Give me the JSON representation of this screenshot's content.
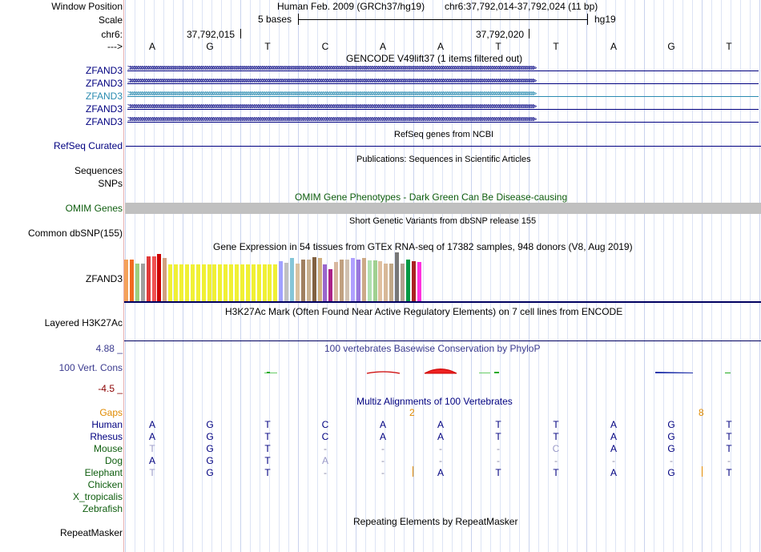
{
  "header": {
    "window_position_label": "Window Position",
    "scale_label": "Scale",
    "chrom_label": "chr6:",
    "strand_label": "--->",
    "assembly": "Human Feb. 2009 (GRCh37/hg19)",
    "position": "chr6:37,792,014-37,792,024 (11 bp)",
    "scale_text": "5 bases",
    "scale_db": "hg19",
    "coord_1": "37,792,015",
    "coord_2": "37,792,020"
  },
  "sequence": [
    "A",
    "G",
    "T",
    "C",
    "A",
    "A",
    "T",
    "T",
    "A",
    "G",
    "T"
  ],
  "gencode": {
    "title": "GENCODE V49lift37 (1 items filtered out)",
    "genes": [
      "ZFAND3",
      "ZFAND3",
      "ZFAND3",
      "ZFAND3",
      "ZFAND3"
    ]
  },
  "refseq": {
    "title": "RefSeq genes from NCBI",
    "label": "RefSeq Curated"
  },
  "publications": {
    "title": "Publications: Sequences in Scientific Articles",
    "label_1": "Sequences",
    "label_2": "SNPs"
  },
  "omim": {
    "title": "OMIM Gene Phenotypes - Dark Green Can Be Disease-causing",
    "label": "OMIM Genes"
  },
  "dbsnp": {
    "title": "Short Genetic Variants from dbSNP release 155",
    "label": "Common dbSNP(155)"
  },
  "gtex": {
    "title": "Gene Expression in 54 tissues from GTEx RNA-seq of 17382 samples, 948 donors (V8, Aug 2019)",
    "label": "ZFAND3"
  },
  "h3k27ac": {
    "title": "H3K27Ac Mark (Often Found Near Active Regulatory Elements) on 7 cell lines from ENCODE",
    "label": "Layered H3K27Ac"
  },
  "conservation": {
    "title": "100 vertebrates Basewise Conservation by PhyloP",
    "label": "100 Vert. Cons",
    "max": "4.88 _",
    "min": "-4.5 _"
  },
  "multiz": {
    "title": "Multiz Alignments of 100 Vertebrates",
    "gaps_label": "Gaps",
    "gap_1": "2",
    "gap_2": "8",
    "species": [
      {
        "name": "Human",
        "bases": [
          "A",
          "G",
          "T",
          "C",
          "A",
          "A",
          "T",
          "T",
          "A",
          "G",
          "T"
        ]
      },
      {
        "name": "Rhesus",
        "bases": [
          "A",
          "G",
          "T",
          "C",
          "A",
          "A",
          "T",
          "T",
          "A",
          "G",
          "T"
        ]
      },
      {
        "name": "Mouse",
        "bases": [
          "T",
          "G",
          "T",
          "-",
          "-",
          "-",
          "-",
          "C",
          "A",
          "G",
          "T"
        ]
      },
      {
        "name": "Dog",
        "bases": [
          "A",
          "G",
          "T",
          "A",
          "-",
          "-",
          "-",
          "-",
          "-",
          "-",
          "-"
        ]
      },
      {
        "name": "Elephant",
        "bases": [
          "T",
          "G",
          "T",
          "-",
          "-",
          "A",
          "T",
          "T",
          "A",
          "G",
          "T"
        ]
      },
      {
        "name": "Chicken",
        "bases": []
      },
      {
        "name": "X_tropicalis",
        "bases": []
      },
      {
        "name": "Zebrafish",
        "bases": []
      }
    ]
  },
  "repeatmasker": {
    "title": "Repeating Elements by RepeatMasker",
    "label": "RepeatMasker"
  },
  "colors": {
    "navy": "#000080",
    "teal": "#2a8bb0",
    "omim_green": "#0e5d0e",
    "gaps_orange": "#e08a00",
    "cons_blue": "#3b3b8f",
    "cons_red": "#8b0000",
    "gtex": [
      "#f4a15a",
      "#f26a21",
      "#9dcf7e",
      "#a0a0a0",
      "#e03a3a",
      "#f05050",
      "#cc0000",
      "#d1a080",
      "#f0f035",
      "#f0f035",
      "#f0f035",
      "#f0f035",
      "#f0f035",
      "#f0f035",
      "#f0f035",
      "#f0f035",
      "#f0f035",
      "#f0f035",
      "#f0f035",
      "#f0f035",
      "#f0f035",
      "#f0f035",
      "#f0f035",
      "#f0f035",
      "#f0f035",
      "#f0f035",
      "#f0f035",
      "#f0f035",
      "#a0a0ff",
      "#c0c0c0",
      "#85c6d8",
      "#d8c0a0",
      "#a08060",
      "#c8b090",
      "#806040",
      "#d0b080",
      "#9966cc",
      "#aa2288",
      "#d8b8a0",
      "#c0a080",
      "#d0c0b0",
      "#b0a0ff",
      "#9977dd",
      "#ccaa88",
      "#b0e0b0",
      "#a0d090",
      "#e0c0a0",
      "#d8b898",
      "#c0a888",
      "#777777",
      "#b0a090",
      "#009944",
      "#aa2222",
      "#ff33dd"
    ],
    "gtex_heights": [
      52,
      52,
      47,
      47,
      56,
      56,
      59,
      54,
      46,
      46,
      46,
      46,
      46,
      46,
      46,
      46,
      46,
      46,
      46,
      46,
      46,
      46,
      46,
      46,
      46,
      46,
      46,
      46,
      50,
      48,
      54,
      47,
      52,
      52,
      55,
      54,
      46,
      40,
      49,
      52,
      52,
      54,
      52,
      54,
      51,
      51,
      50,
      47,
      47,
      61,
      47,
      52,
      50,
      49
    ]
  }
}
